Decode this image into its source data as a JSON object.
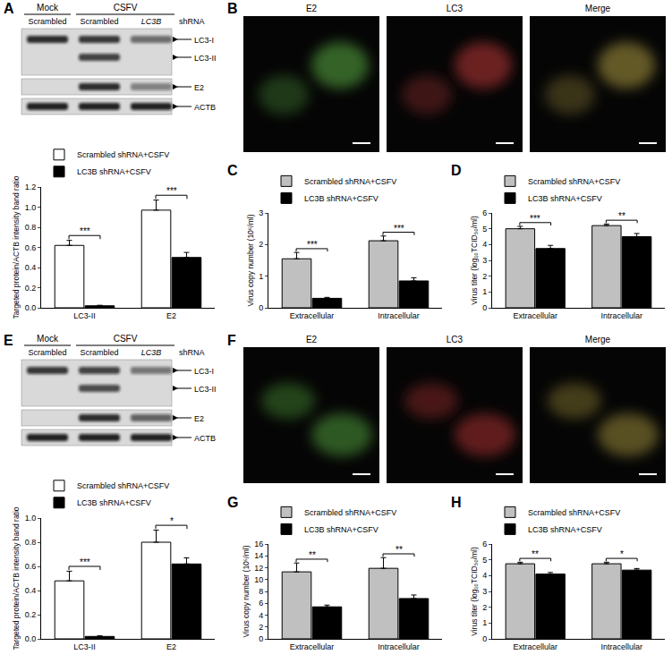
{
  "panel_labels": [
    "A",
    "B",
    "C",
    "D",
    "E",
    "F",
    "G",
    "H"
  ],
  "blots": [
    {
      "label": "A",
      "groups": [
        {
          "label": "Mock",
          "span": 1
        },
        {
          "label": "CSFV",
          "span": 2
        }
      ],
      "lane_labels": [
        "Scrambled",
        "Scrambled",
        "LC3B"
      ],
      "lane_suffix": "shRNA",
      "bands": [
        "LC3-I",
        "LC3-II",
        "E2",
        "ACTB"
      ]
    },
    {
      "label": "E",
      "groups": [
        {
          "label": "Mock",
          "span": 1
        },
        {
          "label": "CSFV",
          "span": 2
        }
      ],
      "lane_labels": [
        "Scrambled",
        "Scrambled",
        "LC3B"
      ],
      "lane_suffix": "shRNA",
      "bands": [
        "LC3-I",
        "LC3-II",
        "E2",
        "ACTB"
      ]
    }
  ],
  "images": [
    {
      "label": "B",
      "channels": [
        "E2",
        "LC3",
        "Merge"
      ]
    },
    {
      "label": "F",
      "channels": [
        "E2",
        "LC3",
        "Merge"
      ]
    }
  ],
  "chart_data": [
    {
      "type": "bar",
      "ylabel": "Targeted protein/ACTB intensity band ratio",
      "categories": [
        "LC3-II",
        "E2"
      ],
      "series": [
        {
          "name": "Scrambled shRNA+CSFV",
          "color": "#ffffff",
          "values": [
            0.62,
            0.97
          ],
          "errors": [
            0.05,
            0.1
          ]
        },
        {
          "name": "LC3B shRNA+CSFV",
          "color": "#000000",
          "values": [
            0.02,
            0.5
          ],
          "errors": [
            0.005,
            0.05
          ]
        }
      ],
      "ylim": [
        0,
        1.2
      ],
      "yticks": [
        {
          "value": 0,
          "label": "0.0"
        },
        {
          "value": 0.2,
          "label": "0.2"
        },
        {
          "value": 0.4,
          "label": "0.4"
        },
        {
          "value": 0.6,
          "label": "0.6"
        },
        {
          "value": 0.8,
          "label": "0.8"
        },
        {
          "value": 1,
          "label": "1.0"
        },
        {
          "value": 1.2,
          "label": "1.2"
        }
      ],
      "annotations": [
        {
          "x": 0,
          "text": "***"
        },
        {
          "x": 1,
          "text": "***"
        }
      ],
      "legend": "top",
      "grid": false
    },
    {
      "type": "bar",
      "ylabel": "Virus copy number (10⁶/ml)",
      "categories": [
        "Extracellular",
        "Intracellular"
      ],
      "series": [
        {
          "name": "Scrambled shRNA+CSFV",
          "color": "#c0c0c0",
          "values": [
            1.55,
            2.12
          ],
          "errors": [
            0.2,
            0.15
          ]
        },
        {
          "name": "LC3B shRNA+CSFV",
          "color": "#000000",
          "values": [
            0.3,
            0.85
          ],
          "errors": [
            0.03,
            0.1
          ]
        }
      ],
      "ylim": [
        0,
        3
      ],
      "yticks": [
        0,
        1,
        2,
        3
      ],
      "annotations": [
        {
          "x": 0,
          "text": "***"
        },
        {
          "x": 1,
          "text": "***"
        }
      ],
      "legend": "top",
      "grid": false
    },
    {
      "type": "bar",
      "ylabel": "Virus titer (log₁₀TCID₅₀/ml)",
      "categories": [
        "Extracellular",
        "Intracellular"
      ],
      "series": [
        {
          "name": "Scrambled shRNA+CSFV",
          "color": "#c0c0c0",
          "values": [
            5.0,
            5.2
          ],
          "errors": [
            0.15,
            0.1
          ]
        },
        {
          "name": "LC3B shRNA+CSFV",
          "color": "#000000",
          "values": [
            3.75,
            4.5
          ],
          "errors": [
            0.2,
            0.2
          ]
        }
      ],
      "ylim": [
        0,
        6
      ],
      "yticks": [
        0,
        1,
        2,
        3,
        4,
        5,
        6
      ],
      "annotations": [
        {
          "x": 0,
          "text": "***"
        },
        {
          "x": 1,
          "text": "**"
        }
      ],
      "legend": "top",
      "grid": false
    },
    {
      "type": "bar",
      "ylabel": "Targeted protein/ACTB intensity band ratio",
      "categories": [
        "LC3-II",
        "E2"
      ],
      "series": [
        {
          "name": "Scrambled shRNA+CSFV",
          "color": "#ffffff",
          "values": [
            0.48,
            0.8
          ],
          "errors": [
            0.08,
            0.1
          ]
        },
        {
          "name": "LC3B shRNA+CSFV",
          "color": "#000000",
          "values": [
            0.02,
            0.62
          ],
          "errors": [
            0.005,
            0.05
          ]
        }
      ],
      "ylim": [
        0,
        1
      ],
      "yticks": [
        {
          "value": 0,
          "label": "0.0"
        },
        {
          "value": 0.2,
          "label": "0.2"
        },
        {
          "value": 0.4,
          "label": "0.4"
        },
        {
          "value": 0.6,
          "label": "0.6"
        },
        {
          "value": 0.8,
          "label": "0.8"
        },
        {
          "value": 1,
          "label": "1.0"
        }
      ],
      "annotations": [
        {
          "x": 0,
          "text": "***"
        },
        {
          "x": 1,
          "text": "*"
        }
      ],
      "legend": "top",
      "grid": false
    },
    {
      "type": "bar",
      "ylabel": "Virus copy number (10⁵/ml)",
      "categories": [
        "Extracellular",
        "Intracellular"
      ],
      "series": [
        {
          "name": "Scrambled shRNA+CSFV",
          "color": "#c0c0c0",
          "values": [
            11.3,
            11.9
          ],
          "errors": [
            1.5,
            1.8
          ]
        },
        {
          "name": "LC3B shRNA+CSFV",
          "color": "#000000",
          "values": [
            5.4,
            6.8
          ],
          "errors": [
            0.3,
            0.6
          ]
        }
      ],
      "ylim": [
        0,
        16
      ],
      "yticks": [
        0,
        2,
        4,
        6,
        8,
        10,
        12,
        14,
        16
      ],
      "annotations": [
        {
          "x": 0,
          "text": "**"
        },
        {
          "x": 1,
          "text": "**"
        }
      ],
      "legend": "top",
      "grid": false
    },
    {
      "type": "bar",
      "ylabel": "Virus titer (log₁₀TCID₅₀/ml)",
      "categories": [
        "Extracellular",
        "Intracellular"
      ],
      "series": [
        {
          "name": "Scrambled shRNA+CSFV",
          "color": "#c0c0c0",
          "values": [
            4.75,
            4.75
          ],
          "errors": [
            0.1,
            0.1
          ]
        },
        {
          "name": "LC3B shRNA+CSFV",
          "color": "#000000",
          "values": [
            4.1,
            4.35
          ],
          "errors": [
            0.1,
            0.1
          ]
        }
      ],
      "ylim": [
        0,
        6
      ],
      "yticks": [
        0,
        1,
        2,
        3,
        4,
        5,
        6
      ],
      "annotations": [
        {
          "x": 0,
          "text": "**"
        },
        {
          "x": 1,
          "text": "*"
        }
      ],
      "legend": "top",
      "grid": false
    }
  ]
}
